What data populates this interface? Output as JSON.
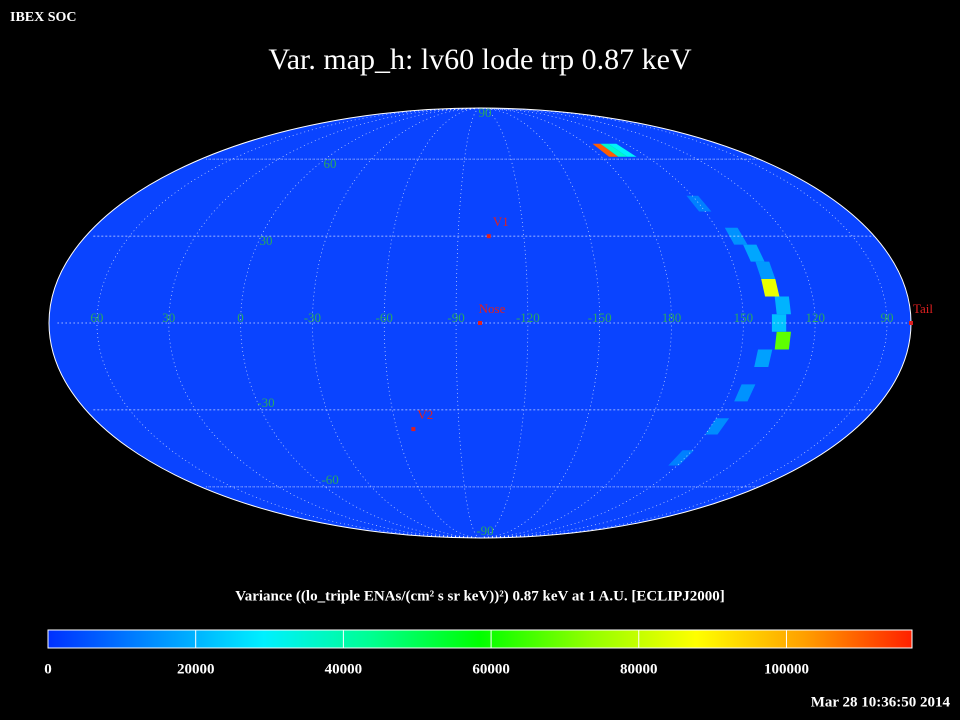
{
  "header": "IBEX SOC",
  "timestamp": "Mar 28 10:36:50 2014",
  "chart_data": {
    "type": "skymap",
    "title": "Var. map_h: lv60 lode trp 0.87 keV",
    "projection": "mollweide",
    "center_lon": -100,
    "lon_labels": [
      60,
      30,
      0,
      -30,
      -60,
      -90,
      -120,
      -150,
      180,
      150,
      120,
      90
    ],
    "lat_labels": [
      90,
      60,
      30,
      -30,
      -60,
      -90
    ],
    "markers": [
      {
        "label": "V1",
        "lon": -104,
        "lat": 30
      },
      {
        "label": "Nose",
        "lon": -100,
        "lat": 0
      },
      {
        "label": "V2",
        "lon": -68,
        "lat": -37
      },
      {
        "label": "Tail",
        "lon": 80,
        "lat": 0
      }
    ],
    "cells": [
      {
        "lon": 137,
        "lat": 12,
        "value": 85000
      },
      {
        "lon": 133,
        "lat": -6,
        "value": 68000
      },
      {
        "lon": 135,
        "lat": 0,
        "value": 22000
      },
      {
        "lon": 133,
        "lat": 6,
        "value": 20000
      },
      {
        "lon": 139,
        "lat": 24,
        "value": 18000
      },
      {
        "lon": 143,
        "lat": 30,
        "value": 15000
      },
      {
        "lon": 137,
        "lat": 18,
        "value": 16000
      },
      {
        "lon": 140,
        "lat": -12,
        "value": 17000
      },
      {
        "lon": 143,
        "lat": -24,
        "value": 15000
      },
      {
        "lon": 147,
        "lat": -36,
        "value": 14000
      },
      {
        "lon": 152,
        "lat": -48,
        "value": 12000
      },
      {
        "lon": 150,
        "lat": 42,
        "value": 12000
      },
      {
        "lon": 172,
        "lat": 64,
        "value": 110000
      },
      {
        "lon": 166,
        "lat": 64,
        "value": 36000
      },
      {
        "lon": 160,
        "lat": 64,
        "value": 30000
      }
    ],
    "colorbar": {
      "label": "Variance ((lo_triple ENAs/(cm² s sr keV))²) 0.87 keV at 1 A.U. [ECLIPJ2000]",
      "lim": [
        0,
        117000
      ],
      "ticks": [
        0,
        20000,
        40000,
        60000,
        80000,
        100000
      ],
      "colors": [
        "#0030ff",
        "#0090ff",
        "#00f0ff",
        "#00ff90",
        "#00ff00",
        "#90ff00",
        "#ffff00",
        "#ffa000",
        "#ff2000"
      ]
    }
  }
}
